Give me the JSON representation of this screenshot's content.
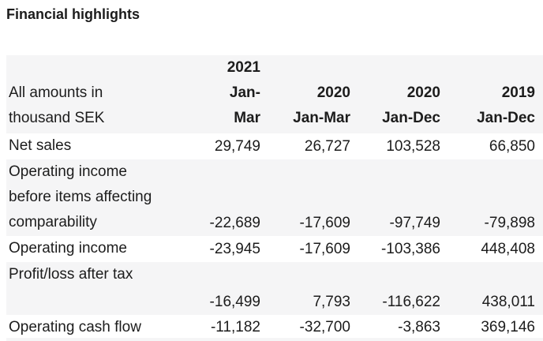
{
  "title": "Financial highlights",
  "colors": {
    "stripe_background": "#f5f5f6",
    "text": "#1c1c1c",
    "page_background": "#ffffff"
  },
  "table": {
    "columns": [
      "All amounts in\nthousand SEK",
      "2021\nJan-\nMar",
      "2020\nJan-Mar",
      "2020\nJan-Dec",
      "2019\nJan-Dec"
    ],
    "rows": [
      {
        "label": "Net sales",
        "values": [
          "29,749",
          "26,727",
          "103,528",
          "66,850"
        ]
      },
      {
        "label": "Operating income\nbefore items affecting\ncomparability",
        "values": [
          "-22,689",
          "-17,609",
          "-97,749",
          "-79,898"
        ]
      },
      {
        "label": "Operating income",
        "values": [
          "-23,945",
          "-17,609",
          "-103,386",
          "448,408"
        ]
      },
      {
        "label": "Profit/loss after tax",
        "values": [
          "-16,499",
          "7,793",
          "-116,622",
          "438,011"
        ]
      },
      {
        "label": "Operating cash flow",
        "values": [
          "-11,182",
          "-32,700",
          "-3,863",
          "369,146"
        ]
      }
    ]
  }
}
